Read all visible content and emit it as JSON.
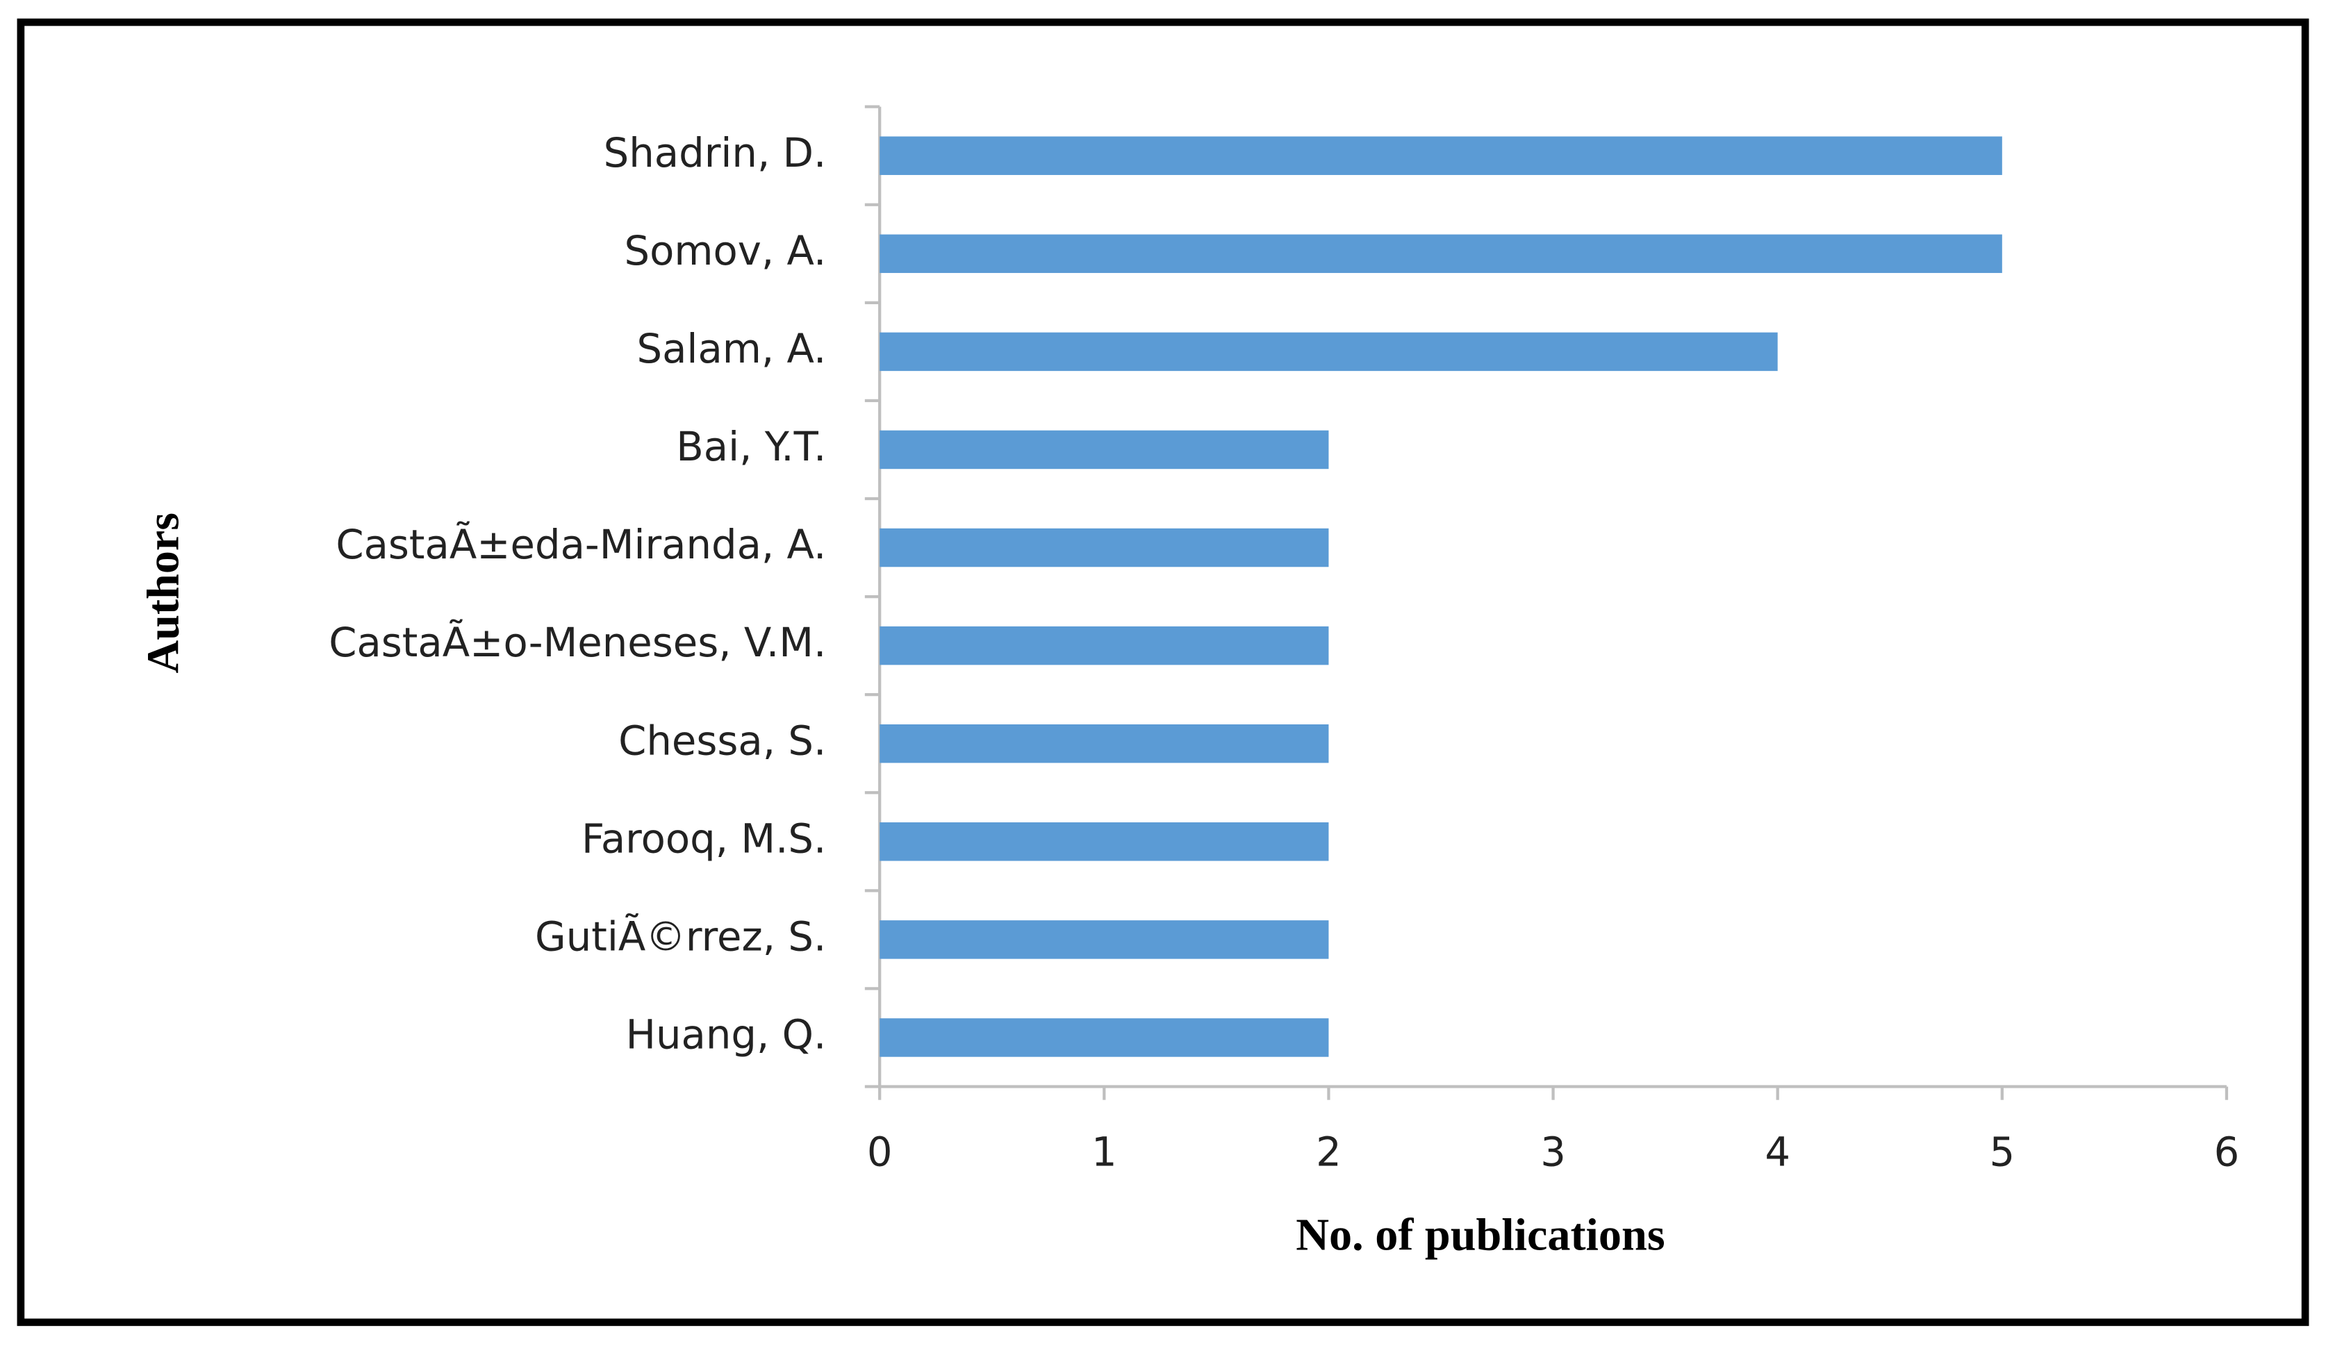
{
  "chart_data": {
    "type": "bar",
    "orientation": "horizontal",
    "xlabel": "No. of publications",
    "ylabel": "Authors",
    "categories": [
      "Shadrin, D.",
      "Somov, A.",
      "Salam, A.",
      "Bai, Y.T.",
      "CastaÃ±eda-Miranda, A.",
      "CastaÃ±o-Meneses, V.M.",
      "Chessa, S.",
      "Farooq, M.S.",
      "GutiÃ©rrez, S.",
      "Huang, Q."
    ],
    "values": [
      5,
      5,
      4,
      2,
      2,
      2,
      2,
      2,
      2,
      2
    ],
    "color": "#5b9bd5",
    "xlim": [
      0,
      6
    ],
    "xticks": [
      0,
      1,
      2,
      3,
      4,
      5,
      6
    ],
    "grid": false
  }
}
